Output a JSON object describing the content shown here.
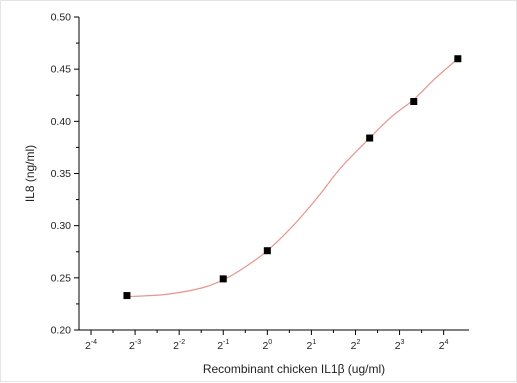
{
  "chart_data": {
    "type": "scatter",
    "title": "",
    "xlabel": "Recombinant chicken IL1β (ug/ml)",
    "ylabel": "IL8 (ng/ml)",
    "x_scale": "log2",
    "x_ticks": [
      {
        "base": "2",
        "exp": "-4",
        "value": 0.0625
      },
      {
        "base": "2",
        "exp": "-3",
        "value": 0.125
      },
      {
        "base": "2",
        "exp": "-2",
        "value": 0.25
      },
      {
        "base": "2",
        "exp": "-1",
        "value": 0.5
      },
      {
        "base": "2",
        "exp": "0",
        "value": 1
      },
      {
        "base": "2",
        "exp": "1",
        "value": 2
      },
      {
        "base": "2",
        "exp": "2",
        "value": 4
      },
      {
        "base": "2",
        "exp": "3",
        "value": 8
      },
      {
        "base": "2",
        "exp": "4",
        "value": 16
      }
    ],
    "xlim": [
      0.0625,
      16
    ],
    "ylim": [
      0.2,
      0.5
    ],
    "y_ticks": [
      "0.20",
      "0.25",
      "0.30",
      "0.35",
      "0.40",
      "0.45",
      "0.50"
    ],
    "grid": false,
    "series": [
      {
        "marker": "square",
        "color": "#000000",
        "points": [
          {
            "x": 0.11,
            "y": 0.233
          },
          {
            "x": 0.5,
            "y": 0.249
          },
          {
            "x": 1.0,
            "y": 0.276
          },
          {
            "x": 5.0,
            "y": 0.384
          },
          {
            "x": 10.0,
            "y": 0.419
          },
          {
            "x": 20.0,
            "y": 0.46
          }
        ]
      }
    ],
    "fit_curve": {
      "color": "#e8958f",
      "points": [
        {
          "x": 0.11,
          "y": 0.232
        },
        {
          "x": 0.2,
          "y": 0.234
        },
        {
          "x": 0.35,
          "y": 0.24
        },
        {
          "x": 0.5,
          "y": 0.248
        },
        {
          "x": 0.7,
          "y": 0.26
        },
        {
          "x": 1.0,
          "y": 0.276
        },
        {
          "x": 1.5,
          "y": 0.3
        },
        {
          "x": 2.2,
          "y": 0.327
        },
        {
          "x": 3.2,
          "y": 0.356
        },
        {
          "x": 5.0,
          "y": 0.384
        },
        {
          "x": 7.0,
          "y": 0.404
        },
        {
          "x": 10.0,
          "y": 0.421
        },
        {
          "x": 14.0,
          "y": 0.441
        },
        {
          "x": 20.0,
          "y": 0.46
        }
      ]
    }
  }
}
